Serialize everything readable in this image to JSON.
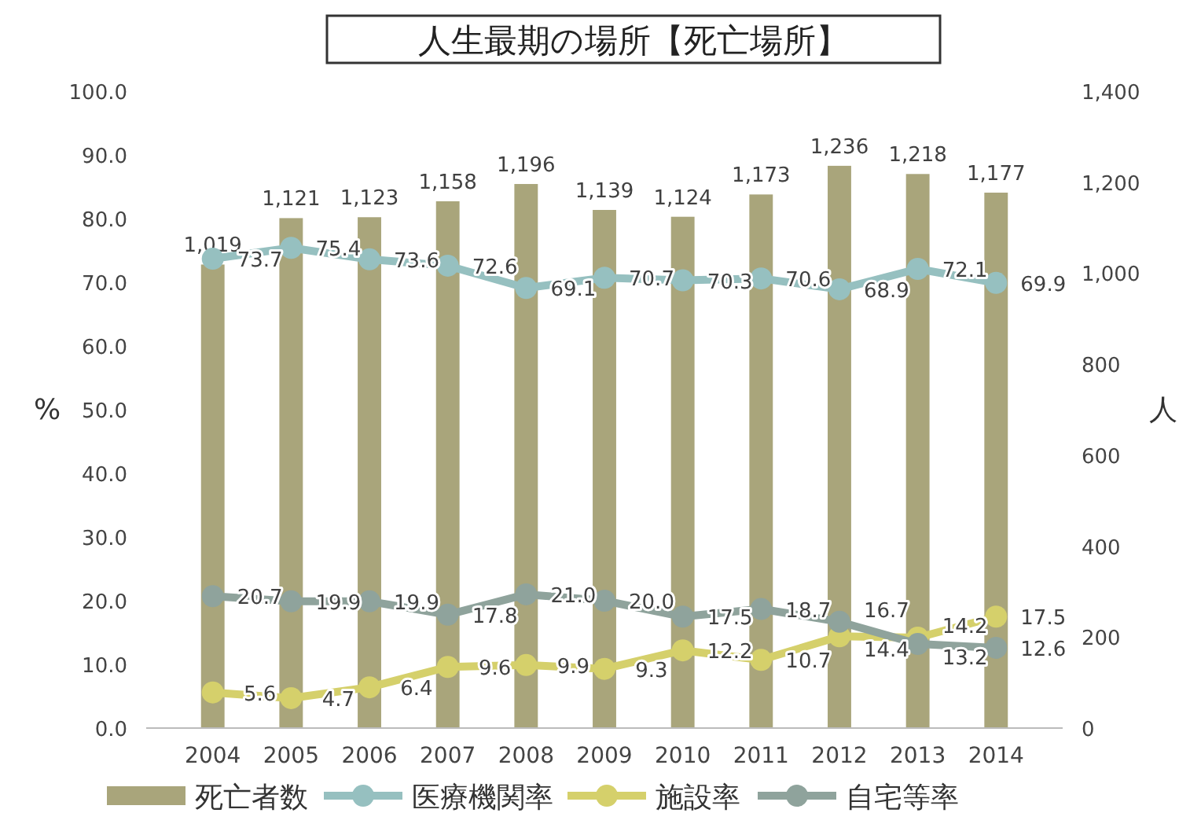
{
  "chart_data": {
    "type": "bar",
    "title": "人生最期の場所【死亡場所】",
    "ylabel": "%",
    "y2label": "人",
    "categories": [
      "2004",
      "2005",
      "2006",
      "2007",
      "2008",
      "2009",
      "2010",
      "2011",
      "2012",
      "2013",
      "2014"
    ],
    "ylim": [
      0,
      100
    ],
    "yticks": [
      {
        "value": 0,
        "label": "0.0"
      },
      {
        "value": 10,
        "label": "10.0"
      },
      {
        "value": 20,
        "label": "20.0"
      },
      {
        "value": 30,
        "label": "30.0"
      },
      {
        "value": 40,
        "label": "40.0"
      },
      {
        "value": 50,
        "label": "50.0"
      },
      {
        "value": 60,
        "label": "60.0"
      },
      {
        "value": 70,
        "label": "70.0"
      },
      {
        "value": 80,
        "label": "80.0"
      },
      {
        "value": 90,
        "label": "90.0"
      },
      {
        "value": 100,
        "label": "100.0"
      }
    ],
    "y2lim": [
      0,
      1400
    ],
    "y2ticks": [
      0,
      200,
      400,
      600,
      800,
      {
        "value": 1000,
        "label": "1,000"
      },
      {
        "value": 1200,
        "label": "1,200"
      },
      {
        "value": 1400,
        "label": "1,400"
      }
    ],
    "series": [
      {
        "name": "死亡者数",
        "axis": "y2",
        "color": "#a9a57b",
        "values": [
          1019,
          1121,
          1123,
          1158,
          1196,
          1139,
          1124,
          1173,
          1236,
          1218,
          1177
        ],
        "value_labels": [
          "1,019",
          "1,121",
          "1,123",
          "1,158",
          "1,196",
          "1,139",
          "1,124",
          "1,173",
          "1,236",
          "1,218",
          "1,177"
        ]
      },
      {
        "name": "医療機関率",
        "type": "line",
        "color": "#96c0c0",
        "values": [
          73.7,
          75.4,
          73.6,
          72.6,
          69.1,
          70.7,
          70.3,
          70.6,
          68.9,
          72.1,
          69.9
        ],
        "value_labels": [
          "73.7",
          "75.4",
          "73.6",
          "72.6",
          "69.1",
          "70.7",
          "70.3",
          "70.6",
          "68.9",
          "72.1",
          "69.9"
        ]
      },
      {
        "name": "施設率",
        "type": "line",
        "color": "#d5d06b",
        "values": [
          5.6,
          4.7,
          6.4,
          9.6,
          9.9,
          9.3,
          12.2,
          10.7,
          14.4,
          14.2,
          17.5
        ],
        "value_labels": [
          "5.6",
          "4.7",
          "6.4",
          "9.6",
          "9.9",
          "9.3",
          "12.2",
          "10.7",
          "14.4",
          "14.2",
          "17.5"
        ]
      },
      {
        "name": "自宅等率",
        "type": "line",
        "color": "#8fa39c",
        "values": [
          20.7,
          19.9,
          19.9,
          17.8,
          21.0,
          20.0,
          17.5,
          18.7,
          16.7,
          13.2,
          12.6
        ],
        "value_labels": [
          "20.7",
          "19.9",
          "19.9",
          "17.8",
          "21.0",
          "20.0",
          "17.5",
          "18.7",
          "16.7",
          "13.2",
          "12.6"
        ]
      }
    ],
    "marker": "circle",
    "legend": "bottom",
    "grid": false
  }
}
